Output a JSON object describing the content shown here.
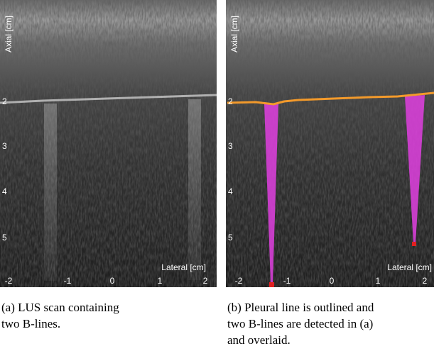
{
  "panels": [
    {
      "y_label": "Axial [cm]",
      "x_label": "Lateral [cm]",
      "y_ticks": [
        "2",
        "3",
        "4",
        "5"
      ],
      "x_ticks": [
        "-2",
        "-1",
        "0",
        "1",
        "2"
      ],
      "caption": [
        "(a)  LUS scan containing",
        "two B-lines."
      ]
    },
    {
      "y_label": "Axial [cm]",
      "x_label": "Lateral [cm]",
      "y_ticks": [
        "2",
        "3",
        "4",
        "5"
      ],
      "x_ticks": [
        "-2",
        "-1",
        "0",
        "1",
        "2"
      ],
      "caption": [
        "(b)  Pleural line is outlined and",
        "two B-lines are detected in (a)",
        "and overlaid."
      ]
    }
  ]
}
